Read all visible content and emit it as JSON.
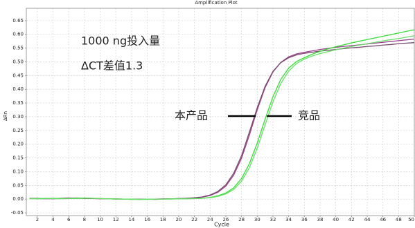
{
  "chart_data": {
    "type": "line",
    "title": "Amplification Plot",
    "x_label": "Cycle",
    "y_label": "ΔRn",
    "x": [
      1,
      2,
      3,
      4,
      5,
      6,
      7,
      8,
      9,
      10,
      11,
      12,
      13,
      14,
      15,
      16,
      17,
      18,
      19,
      20,
      21,
      22,
      23,
      24,
      25,
      26,
      27,
      28,
      29,
      30,
      31,
      32,
      33,
      34,
      35,
      36,
      37,
      38,
      39,
      40,
      41,
      42,
      43,
      44,
      45,
      46,
      47,
      48,
      49,
      50
    ],
    "series": [
      {
        "name": "本产品",
        "color": "#9b3f8e",
        "values": [
          0.003,
          0.002,
          0.001,
          0.002,
          0.003,
          0.004,
          0.003,
          0.002,
          0.002,
          0.001,
          0.001,
          0.0,
          0.0,
          -0.001,
          0.0,
          0.0,
          -0.001,
          0.0,
          0.001,
          0.002,
          0.003,
          0.003,
          0.007,
          0.013,
          0.025,
          0.047,
          0.087,
          0.149,
          0.233,
          0.325,
          0.406,
          0.463,
          0.498,
          0.518,
          0.529,
          0.535,
          0.54,
          0.545,
          0.549,
          0.553,
          0.556,
          0.559,
          0.562,
          0.565,
          0.568,
          0.571,
          0.574,
          0.577,
          0.58,
          0.583
        ]
      },
      {
        "color": "#7a4a6f",
        "values": [
          0.002,
          0.003,
          0.002,
          0.001,
          0.002,
          0.003,
          0.004,
          0.003,
          0.002,
          0.002,
          0.001,
          0.001,
          0.0,
          0.0,
          -0.001,
          0.0,
          0.0,
          0.001,
          0.001,
          0.002,
          0.003,
          0.005,
          0.008,
          0.015,
          0.028,
          0.052,
          0.094,
          0.158,
          0.244,
          0.333,
          0.411,
          0.465,
          0.497,
          0.515,
          0.525,
          0.531,
          0.535,
          0.539,
          0.542,
          0.545,
          0.548,
          0.551,
          0.553,
          0.556,
          0.558,
          0.561,
          0.563,
          0.566,
          0.568,
          0.57
        ]
      },
      {
        "name": "竞品",
        "color": "#33dd33",
        "values": [
          0.002,
          0.001,
          0.002,
          0.003,
          0.002,
          0.002,
          0.003,
          0.004,
          0.003,
          0.002,
          0.001,
          0.0,
          0.0,
          0.0,
          -0.001,
          -0.001,
          0.0,
          0.0,
          0.0,
          0.001,
          0.001,
          0.002,
          0.003,
          0.006,
          0.012,
          0.022,
          0.041,
          0.075,
          0.129,
          0.204,
          0.291,
          0.373,
          0.436,
          0.477,
          0.501,
          0.515,
          0.528,
          0.538,
          0.547,
          0.555,
          0.562,
          0.569,
          0.575,
          0.581,
          0.587,
          0.593,
          0.599,
          0.605,
          0.611,
          0.617
        ]
      },
      {
        "color": "#66e066",
        "values": [
          0.001,
          0.002,
          0.003,
          0.002,
          0.001,
          0.002,
          0.002,
          0.003,
          0.003,
          0.002,
          0.001,
          0.001,
          0.0,
          -0.001,
          -0.001,
          0.0,
          0.0,
          0.0,
          0.001,
          0.001,
          0.001,
          0.002,
          0.003,
          0.005,
          0.01,
          0.019,
          0.035,
          0.065,
          0.114,
          0.185,
          0.27,
          0.354,
          0.421,
          0.466,
          0.494,
          0.51,
          0.521,
          0.53,
          0.537,
          0.544,
          0.55,
          0.556,
          0.561,
          0.566,
          0.571,
          0.576,
          0.581,
          0.585,
          0.59,
          0.595
        ]
      }
    ],
    "xlim": [
      0.6,
      50
    ],
    "ylim": [
      -0.06,
      0.695
    ],
    "xticks": [
      2,
      4,
      6,
      8,
      10,
      12,
      14,
      16,
      18,
      20,
      22,
      24,
      26,
      28,
      30,
      32,
      34,
      36,
      38,
      40,
      42,
      44,
      46,
      48,
      50
    ],
    "yticks": [
      {
        "value": -0.05,
        "label": "-0.05"
      },
      {
        "value": 0,
        "label": "0.00"
      },
      {
        "value": 0.05,
        "label": "0.05"
      },
      {
        "value": 0.1,
        "label": "0.10"
      },
      {
        "value": 0.15,
        "label": "0.15"
      },
      {
        "value": 0.2,
        "label": "0.20"
      },
      {
        "value": 0.25,
        "label": "0.25"
      },
      {
        "value": 0.3,
        "label": "0.30"
      },
      {
        "value": 0.35,
        "label": "0.35"
      },
      {
        "value": 0.4,
        "label": "0.40"
      },
      {
        "value": 0.45,
        "label": "0.45"
      },
      {
        "value": 0.5,
        "label": "0.50"
      },
      {
        "value": 0.55,
        "label": "0.55"
      },
      {
        "value": 0.6,
        "label": "0.60"
      },
      {
        "value": 0.65,
        "label": "0.65"
      }
    ],
    "grid": true,
    "annotations": [
      "1000 ng投入量",
      "ΔCT差值1.3",
      "本产品",
      "竞品"
    ]
  }
}
